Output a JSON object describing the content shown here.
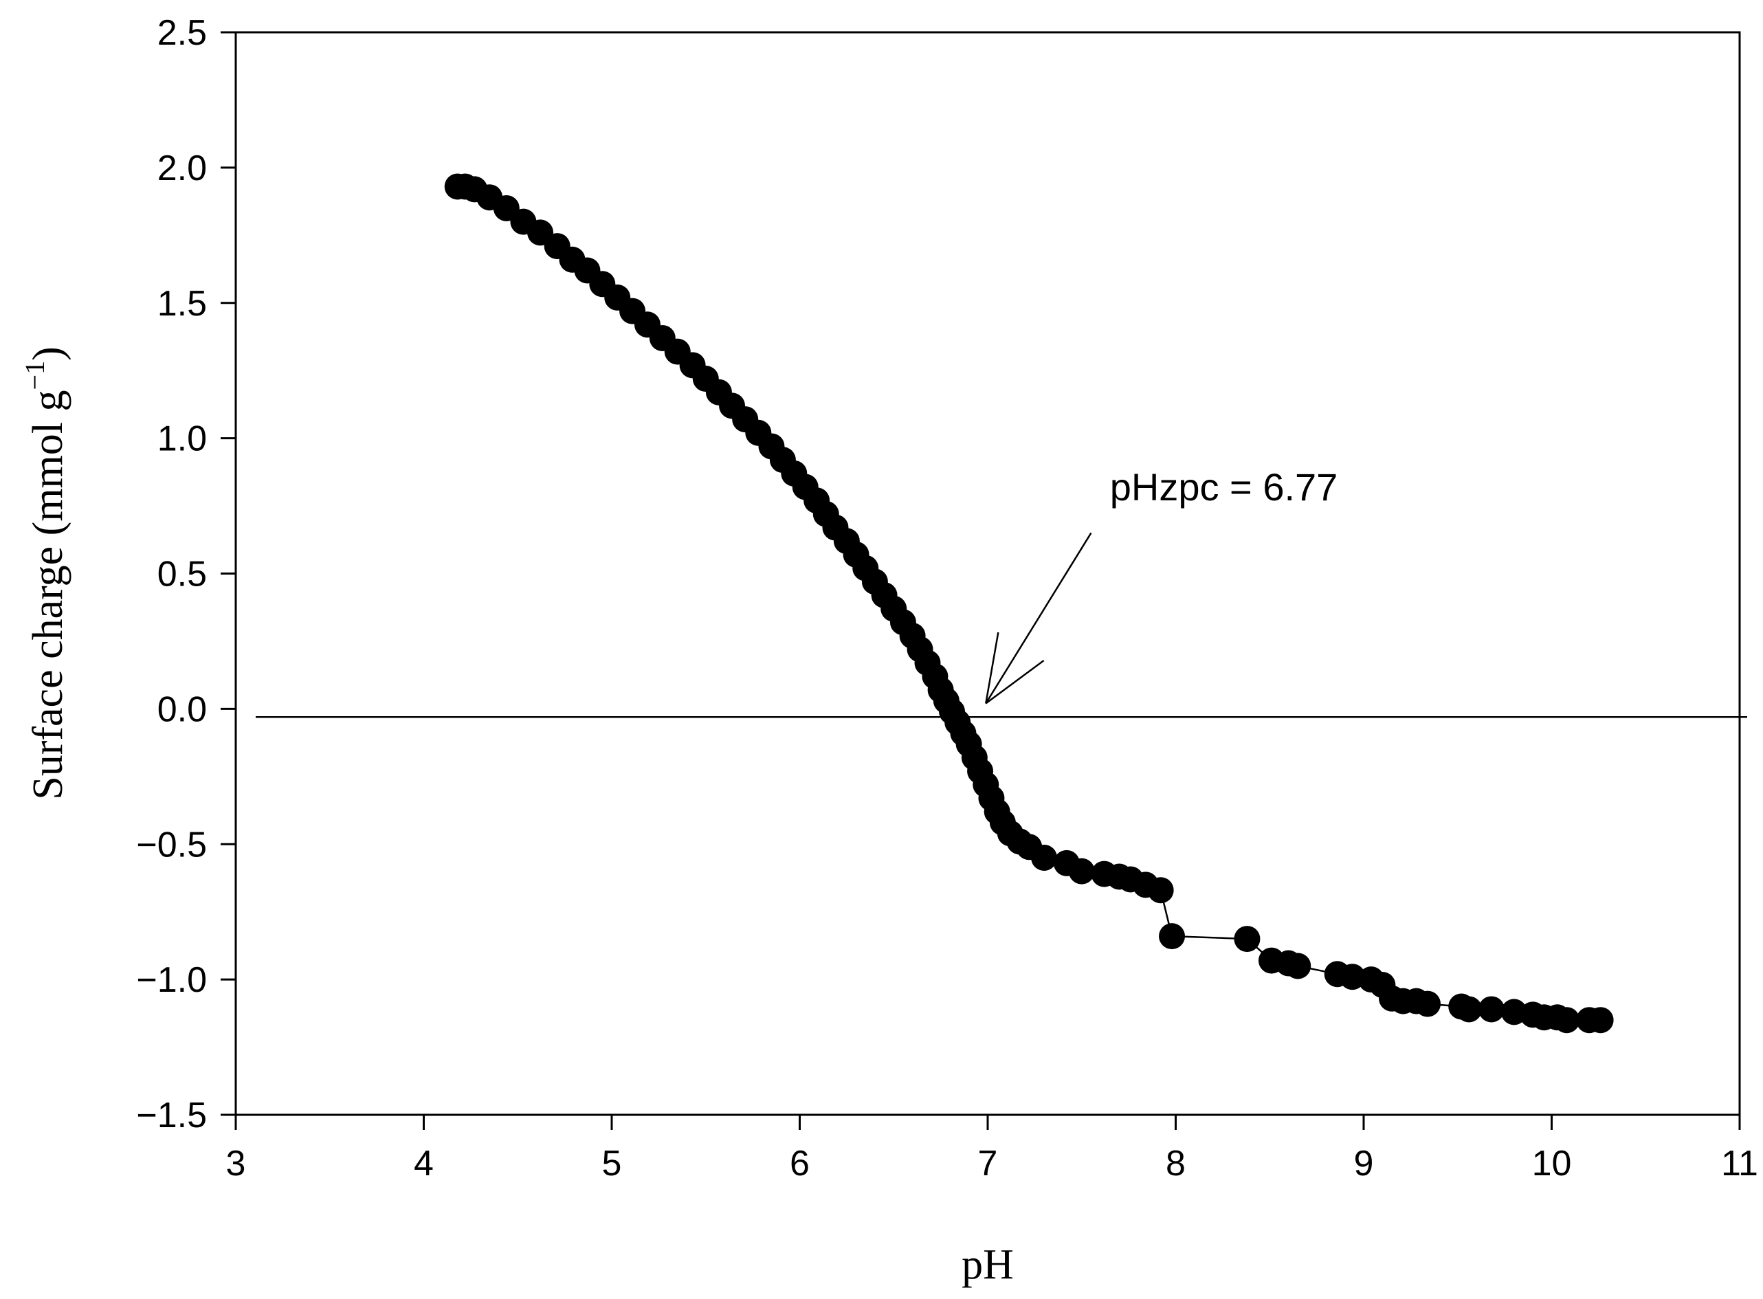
{
  "chart_data": {
    "type": "scatter",
    "title": "",
    "xlabel": "pH",
    "ylabel_main": "Surface charge (mmol g",
    "ylabel_sup": "−1",
    "ylabel_close": ")",
    "xlim": [
      3,
      11
    ],
    "ylim": [
      -1.5,
      2.5
    ],
    "x_ticks": [
      3,
      4,
      5,
      6,
      7,
      8,
      9,
      10,
      11
    ],
    "x_tick_labels": [
      "3",
      "4",
      "5",
      "6",
      "7",
      "8",
      "9",
      "10",
      "11"
    ],
    "y_ticks": [
      -1.5,
      -1.0,
      -0.5,
      0.0,
      0.5,
      1.0,
      1.5,
      2.0,
      2.5
    ],
    "y_tick_labels": [
      "−1.5",
      "−1.0",
      "−0.5",
      "0.0",
      "0.5",
      "1.0",
      "1.5",
      "2.0",
      "2.5"
    ],
    "grid": false,
    "reference_line_y": -0.03,
    "annotation": {
      "text": "pHzpc = 6.77",
      "point": [
        6.99,
        0.02
      ],
      "label_at": [
        7.65,
        0.77
      ]
    },
    "series": [
      {
        "name": "Surface charge",
        "marker": "circle",
        "color": "#000000",
        "x": [
          4.18,
          4.22,
          4.27,
          4.35,
          4.44,
          4.53,
          4.62,
          4.71,
          4.79,
          4.87,
          4.95,
          5.03,
          5.11,
          5.19,
          5.27,
          5.35,
          5.43,
          5.5,
          5.57,
          5.64,
          5.71,
          5.78,
          5.85,
          5.91,
          5.97,
          6.03,
          6.09,
          6.14,
          6.19,
          6.25,
          6.3,
          6.35,
          6.4,
          6.45,
          6.5,
          6.55,
          6.6,
          6.64,
          6.68,
          6.72,
          6.75,
          6.78,
          6.81,
          6.84,
          6.87,
          6.9,
          6.93,
          6.96,
          6.99,
          7.02,
          7.05,
          7.08,
          7.12,
          7.17,
          7.22,
          7.3,
          7.42,
          7.5,
          7.62,
          7.7,
          7.76,
          7.84,
          7.92,
          7.98,
          8.38,
          8.51,
          8.6,
          8.65,
          8.86,
          8.94,
          9.04,
          9.1,
          9.15,
          9.21,
          9.28,
          9.34,
          9.52,
          9.56,
          9.68,
          9.8,
          9.9,
          9.96,
          10.03,
          10.08,
          10.2,
          10.26
        ],
        "y": [
          1.93,
          1.93,
          1.92,
          1.89,
          1.85,
          1.8,
          1.76,
          1.71,
          1.66,
          1.62,
          1.57,
          1.52,
          1.47,
          1.42,
          1.37,
          1.32,
          1.27,
          1.22,
          1.17,
          1.12,
          1.07,
          1.02,
          0.97,
          0.92,
          0.87,
          0.82,
          0.77,
          0.72,
          0.67,
          0.62,
          0.57,
          0.52,
          0.47,
          0.42,
          0.37,
          0.32,
          0.27,
          0.22,
          0.17,
          0.12,
          0.07,
          0.03,
          -0.01,
          -0.05,
          -0.09,
          -0.13,
          -0.18,
          -0.23,
          -0.28,
          -0.33,
          -0.38,
          -0.42,
          -0.46,
          -0.49,
          -0.51,
          -0.55,
          -0.57,
          -0.6,
          -0.61,
          -0.62,
          -0.63,
          -0.65,
          -0.67,
          -0.84,
          -0.85,
          -0.93,
          -0.94,
          -0.95,
          -0.98,
          -0.99,
          -1.0,
          -1.02,
          -1.07,
          -1.08,
          -1.08,
          -1.09,
          -1.1,
          -1.11,
          -1.11,
          -1.12,
          -1.13,
          -1.14,
          -1.14,
          -1.15,
          -1.15,
          -1.15
        ]
      }
    ]
  }
}
